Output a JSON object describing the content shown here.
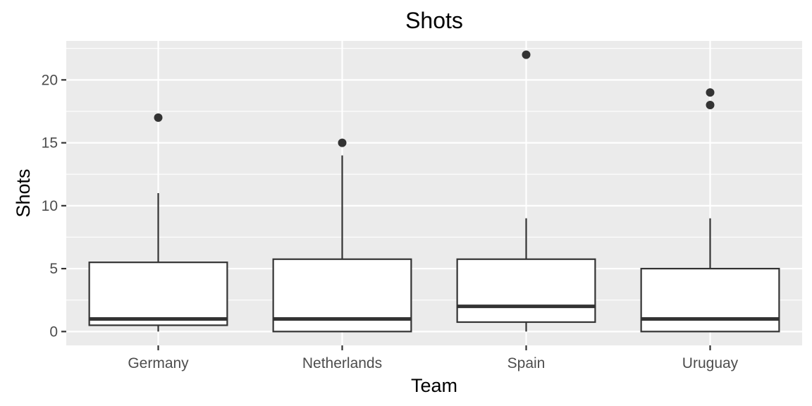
{
  "chart_data": {
    "type": "boxplot",
    "title": "Shots",
    "xlabel": "Team",
    "ylabel": "Shots",
    "ylim": [
      -1.1,
      23.1
    ],
    "yticks": [
      0,
      5,
      10,
      15,
      20
    ],
    "y_tick_labels": [
      "0",
      "5",
      "10",
      "15",
      "20"
    ],
    "grid": true,
    "legend": "none",
    "categories": [
      "Germany",
      "Netherlands",
      "Spain",
      "Uruguay"
    ],
    "boxes": [
      {
        "category": "Germany",
        "whisker_low": 0,
        "q1": 0.5,
        "median": 1,
        "q3": 5.5,
        "whisker_high": 11,
        "outliers": [
          17
        ]
      },
      {
        "category": "Netherlands",
        "whisker_low": 0,
        "q1": 0,
        "median": 1,
        "q3": 5.75,
        "whisker_high": 14,
        "outliers": [
          15
        ]
      },
      {
        "category": "Spain",
        "whisker_low": 0,
        "q1": 0.75,
        "median": 2,
        "q3": 5.75,
        "whisker_high": 9,
        "outliers": [
          22
        ]
      },
      {
        "category": "Uruguay",
        "whisker_low": 0,
        "q1": 0,
        "median": 1,
        "q3": 5,
        "whisker_high": 9,
        "outliers": [
          18,
          19
        ]
      }
    ],
    "colors": {
      "panel": "#ebebeb",
      "grid": "#ffffff",
      "box_fill": "#ffffff",
      "box_line": "#333333"
    }
  }
}
